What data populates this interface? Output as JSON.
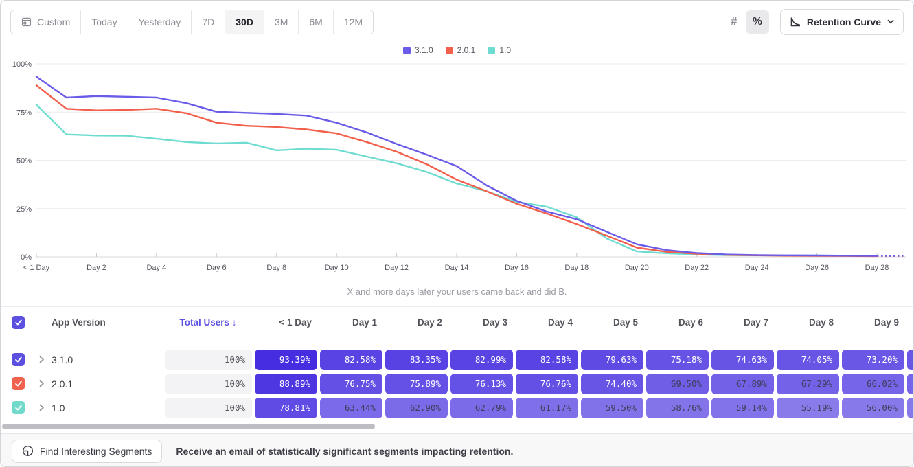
{
  "toolbar": {
    "ranges": [
      {
        "label": "Custom",
        "icon": "calendar-icon"
      },
      {
        "label": "Today"
      },
      {
        "label": "Yesterday"
      },
      {
        "label": "7D"
      },
      {
        "label": "30D"
      },
      {
        "label": "3M"
      },
      {
        "label": "6M"
      },
      {
        "label": "12M"
      }
    ],
    "active_range": "30D",
    "unit_toggle": {
      "hash_label": "#",
      "percent_label": "%",
      "active": "percent"
    },
    "view_selector": {
      "label": "Retention Curve"
    }
  },
  "legend": [
    {
      "label": "3.1.0",
      "color": "#6a5be8"
    },
    {
      "label": "2.0.1",
      "color": "#f2604c"
    },
    {
      "label": "1.0",
      "color": "#6fdcd1"
    }
  ],
  "chart_data": {
    "type": "line",
    "title": "",
    "xlabel": "X and more days later your users came back and did B.",
    "ylabel": "",
    "ylim": [
      0,
      100
    ],
    "x_unit": "days since first use",
    "x_range": [
      0,
      28
    ],
    "grid": "horizontal only",
    "legend_position": "top center",
    "y_ticks": [
      {
        "value": 0,
        "label": "0%"
      },
      {
        "value": 25,
        "label": "25%"
      },
      {
        "value": 50,
        "label": "50%"
      },
      {
        "value": 75,
        "label": "75%"
      },
      {
        "value": 100,
        "label": "100%"
      }
    ],
    "x_tick_labels": [
      "< 1 Day",
      "Day 2",
      "Day 4",
      "Day 6",
      "Day 8",
      "Day 10",
      "Day 12",
      "Day 14",
      "Day 16",
      "Day 18",
      "Day 20",
      "Day 22",
      "Day 24",
      "Day 26",
      "Day 28"
    ],
    "note": "values for days 0-9 from table; days 10-28 estimated from plot; dashed projection after Day 28",
    "series": [
      {
        "name": "3.1.0",
        "color": "#6a5be8",
        "values": [
          93.39,
          82.58,
          83.35,
          82.99,
          82.58,
          79.63,
          75.18,
          74.63,
          74.05,
          73.2,
          69.5,
          64.5,
          58.5,
          53,
          47,
          37,
          29,
          23.5,
          19.5,
          13,
          6.5,
          3.5,
          2,
          1.2,
          0.9,
          0.8,
          0.7,
          0.6,
          0.5
        ]
      },
      {
        "name": "2.0.1",
        "color": "#f2604c",
        "values": [
          88.89,
          76.75,
          75.89,
          76.13,
          76.76,
          74.4,
          69.5,
          67.89,
          67.29,
          66.02,
          64,
          59.5,
          54.5,
          48,
          40,
          34,
          27.5,
          22.5,
          17,
          11,
          4.8,
          2.6,
          1.6,
          1.0,
          0.8,
          0.6,
          0.5,
          0.45,
          0.4
        ]
      },
      {
        "name": "1.0",
        "color": "#6fdcd1",
        "values": [
          78.81,
          63.44,
          62.9,
          62.79,
          61.17,
          59.5,
          58.76,
          59.14,
          55.19,
          56.0,
          55.5,
          52,
          48.5,
          44,
          38,
          34,
          28.5,
          26,
          20.5,
          9.5,
          2.8,
          1.8,
          1.2,
          0.9,
          0.8,
          0.7,
          0.7,
          0.6,
          0.6
        ]
      }
    ],
    "caption": "X and more days later your users came back and did B."
  },
  "table": {
    "headers": {
      "version": "App Version",
      "total_users": "Total Users",
      "sort_arrow": "↓",
      "days": [
        "< 1 Day",
        "Day 1",
        "Day 2",
        "Day 3",
        "Day 4",
        "Day 5",
        "Day 6",
        "Day 7",
        "Day 8",
        "Day 9"
      ]
    },
    "rows": [
      {
        "version": "3.1.0",
        "color": "#5b50e0",
        "checked": true,
        "total": "100%",
        "values": [
          93.39,
          82.58,
          83.35,
          82.99,
          82.58,
          79.63,
          75.18,
          74.63,
          74.05,
          73.2
        ]
      },
      {
        "version": "2.0.1",
        "color": "#f0614e",
        "checked": true,
        "total": "100%",
        "values": [
          88.89,
          76.75,
          75.89,
          76.13,
          76.76,
          74.4,
          69.5,
          67.89,
          67.29,
          66.02
        ]
      },
      {
        "version": "1.0",
        "color": "#72d9cb",
        "checked": true,
        "total": "100%",
        "values": [
          78.81,
          63.44,
          62.9,
          62.79,
          61.17,
          59.5,
          58.76,
          59.14,
          55.19,
          56.0
        ]
      }
    ],
    "header_checkbox_color": "#5b50e0"
  },
  "footer": {
    "button_label": "Find Interesting Segments",
    "message": "Receive an email of statistically significant segments impacting retention."
  },
  "colors": {
    "accent_purple": "#5b50e0",
    "cell_text_light": "#ffffff",
    "cell_text_dark": "#403e58",
    "axis_text": "#55545e",
    "muted_text": "#8b8a93"
  }
}
